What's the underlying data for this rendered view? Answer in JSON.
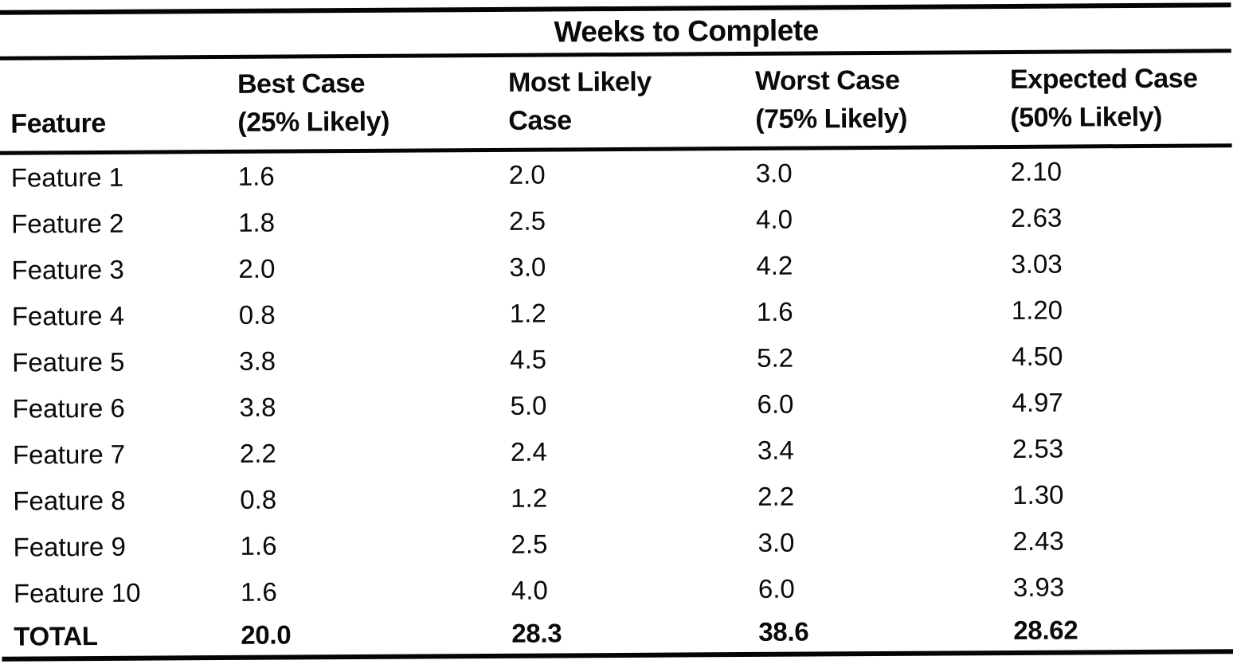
{
  "document": {
    "span_header": "Weeks to Complete",
    "header": {
      "feature_label": "Feature",
      "cols": [
        {
          "line1": "Best Case",
          "line2": "(25% Likely)"
        },
        {
          "line1": "Most Likely",
          "line2": "Case"
        },
        {
          "line1": "Worst Case",
          "line2": "(75% Likely)"
        },
        {
          "line1": "Expected Case",
          "line2": "(50% Likely)"
        }
      ]
    },
    "rows": [
      {
        "feature": "Feature 1",
        "best_case": "1.6",
        "most_likely": "2.0",
        "worst_case": "3.0",
        "expected": "2.10"
      },
      {
        "feature": "Feature 2",
        "best_case": "1.8",
        "most_likely": "2.5",
        "worst_case": "4.0",
        "expected": "2.63"
      },
      {
        "feature": "Feature 3",
        "best_case": "2.0",
        "most_likely": "3.0",
        "worst_case": "4.2",
        "expected": "3.03"
      },
      {
        "feature": "Feature 4",
        "best_case": "0.8",
        "most_likely": "1.2",
        "worst_case": "1.6",
        "expected": "1.20"
      },
      {
        "feature": "Feature 5",
        "best_case": "3.8",
        "most_likely": "4.5",
        "worst_case": "5.2",
        "expected": "4.50"
      },
      {
        "feature": "Feature 6",
        "best_case": "3.8",
        "most_likely": "5.0",
        "worst_case": "6.0",
        "expected": "4.97"
      },
      {
        "feature": "Feature 7",
        "best_case": "2.2",
        "most_likely": "2.4",
        "worst_case": "3.4",
        "expected": "2.53"
      },
      {
        "feature": "Feature 8",
        "best_case": "0.8",
        "most_likely": "1.2",
        "worst_case": "2.2",
        "expected": "1.30"
      },
      {
        "feature": "Feature 9",
        "best_case": "1.6",
        "most_likely": "2.5",
        "worst_case": "3.0",
        "expected": "2.43"
      },
      {
        "feature": "Feature 10",
        "best_case": "1.6",
        "most_likely": "4.0",
        "worst_case": "6.0",
        "expected": "3.93"
      }
    ],
    "total_row": {
      "feature": "TOTAL",
      "best_case": "20.0",
      "most_likely": "28.3",
      "worst_case": "38.6",
      "expected": "28.62"
    },
    "colors": {
      "ink": "#050505",
      "paper": "#ffffff"
    }
  }
}
